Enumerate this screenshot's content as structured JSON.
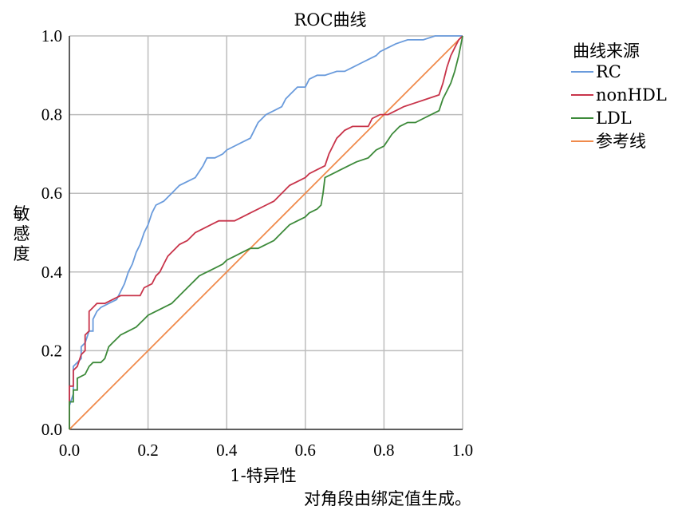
{
  "chart_data": {
    "type": "line",
    "title": "ROC曲线",
    "xlabel": "1-特异性",
    "ylabel": "敏感度",
    "xlim": [
      0,
      1
    ],
    "ylim": [
      0,
      1
    ],
    "xticks": [
      "0.0",
      "0.2",
      "0.4",
      "0.6",
      "0.8",
      "1.0"
    ],
    "yticks": [
      "0.0",
      "0.2",
      "0.4",
      "0.6",
      "0.8",
      "1.0"
    ],
    "grid": true,
    "legend_title": "曲线来源",
    "legend_position": "right",
    "footnote": "对角段由绑定值生成。",
    "series": [
      {
        "name": "RC",
        "color": "#6a9bdc",
        "points": [
          [
            0,
            0
          ],
          [
            0,
            0.06
          ],
          [
            0.01,
            0.09
          ],
          [
            0.01,
            0.16
          ],
          [
            0.02,
            0.17
          ],
          [
            0.03,
            0.18
          ],
          [
            0.03,
            0.21
          ],
          [
            0.04,
            0.22
          ],
          [
            0.05,
            0.25
          ],
          [
            0.06,
            0.25
          ],
          [
            0.06,
            0.28
          ],
          [
            0.07,
            0.3
          ],
          [
            0.08,
            0.31
          ],
          [
            0.1,
            0.32
          ],
          [
            0.12,
            0.33
          ],
          [
            0.13,
            0.35
          ],
          [
            0.14,
            0.37
          ],
          [
            0.15,
            0.4
          ],
          [
            0.16,
            0.42
          ],
          [
            0.17,
            0.45
          ],
          [
            0.18,
            0.47
          ],
          [
            0.19,
            0.5
          ],
          [
            0.2,
            0.52
          ],
          [
            0.21,
            0.55
          ],
          [
            0.22,
            0.57
          ],
          [
            0.24,
            0.58
          ],
          [
            0.25,
            0.59
          ],
          [
            0.26,
            0.6
          ],
          [
            0.27,
            0.61
          ],
          [
            0.28,
            0.62
          ],
          [
            0.3,
            0.63
          ],
          [
            0.32,
            0.64
          ],
          [
            0.34,
            0.67
          ],
          [
            0.35,
            0.69
          ],
          [
            0.37,
            0.69
          ],
          [
            0.39,
            0.7
          ],
          [
            0.4,
            0.71
          ],
          [
            0.42,
            0.72
          ],
          [
            0.44,
            0.73
          ],
          [
            0.46,
            0.74
          ],
          [
            0.47,
            0.76
          ],
          [
            0.48,
            0.78
          ],
          [
            0.49,
            0.79
          ],
          [
            0.5,
            0.8
          ],
          [
            0.52,
            0.81
          ],
          [
            0.54,
            0.82
          ],
          [
            0.55,
            0.84
          ],
          [
            0.56,
            0.85
          ],
          [
            0.57,
            0.86
          ],
          [
            0.58,
            0.87
          ],
          [
            0.6,
            0.87
          ],
          [
            0.61,
            0.89
          ],
          [
            0.63,
            0.9
          ],
          [
            0.65,
            0.9
          ],
          [
            0.68,
            0.91
          ],
          [
            0.7,
            0.91
          ],
          [
            0.72,
            0.92
          ],
          [
            0.74,
            0.93
          ],
          [
            0.76,
            0.94
          ],
          [
            0.78,
            0.95
          ],
          [
            0.79,
            0.96
          ],
          [
            0.81,
            0.97
          ],
          [
            0.83,
            0.98
          ],
          [
            0.86,
            0.99
          ],
          [
            0.9,
            0.99
          ],
          [
            0.93,
            1.0
          ],
          [
            1.0,
            1.0
          ]
        ]
      },
      {
        "name": "nonHDL",
        "color": "#c8344a",
        "points": [
          [
            0,
            0
          ],
          [
            0,
            0.11
          ],
          [
            0.01,
            0.11
          ],
          [
            0.01,
            0.15
          ],
          [
            0.02,
            0.16
          ],
          [
            0.03,
            0.19
          ],
          [
            0.04,
            0.2
          ],
          [
            0.04,
            0.24
          ],
          [
            0.05,
            0.25
          ],
          [
            0.05,
            0.3
          ],
          [
            0.06,
            0.31
          ],
          [
            0.07,
            0.32
          ],
          [
            0.09,
            0.32
          ],
          [
            0.11,
            0.33
          ],
          [
            0.13,
            0.34
          ],
          [
            0.15,
            0.34
          ],
          [
            0.18,
            0.34
          ],
          [
            0.19,
            0.36
          ],
          [
            0.21,
            0.37
          ],
          [
            0.22,
            0.39
          ],
          [
            0.23,
            0.4
          ],
          [
            0.24,
            0.42
          ],
          [
            0.25,
            0.44
          ],
          [
            0.26,
            0.45
          ],
          [
            0.27,
            0.46
          ],
          [
            0.28,
            0.47
          ],
          [
            0.3,
            0.48
          ],
          [
            0.32,
            0.5
          ],
          [
            0.34,
            0.51
          ],
          [
            0.36,
            0.52
          ],
          [
            0.38,
            0.53
          ],
          [
            0.4,
            0.53
          ],
          [
            0.42,
            0.53
          ],
          [
            0.44,
            0.54
          ],
          [
            0.46,
            0.55
          ],
          [
            0.48,
            0.56
          ],
          [
            0.5,
            0.57
          ],
          [
            0.52,
            0.58
          ],
          [
            0.54,
            0.6
          ],
          [
            0.56,
            0.62
          ],
          [
            0.58,
            0.63
          ],
          [
            0.6,
            0.64
          ],
          [
            0.61,
            0.65
          ],
          [
            0.63,
            0.66
          ],
          [
            0.65,
            0.67
          ],
          [
            0.66,
            0.7
          ],
          [
            0.67,
            0.72
          ],
          [
            0.68,
            0.74
          ],
          [
            0.69,
            0.75
          ],
          [
            0.7,
            0.76
          ],
          [
            0.72,
            0.77
          ],
          [
            0.74,
            0.77
          ],
          [
            0.76,
            0.77
          ],
          [
            0.77,
            0.79
          ],
          [
            0.79,
            0.8
          ],
          [
            0.81,
            0.8
          ],
          [
            0.83,
            0.81
          ],
          [
            0.85,
            0.82
          ],
          [
            0.88,
            0.83
          ],
          [
            0.91,
            0.84
          ],
          [
            0.94,
            0.85
          ],
          [
            0.95,
            0.88
          ],
          [
            0.96,
            0.92
          ],
          [
            0.97,
            0.95
          ],
          [
            0.98,
            0.97
          ],
          [
            0.99,
            0.99
          ],
          [
            1.0,
            1.0
          ]
        ]
      },
      {
        "name": "LDL",
        "color": "#3d8a3a",
        "points": [
          [
            0,
            0
          ],
          [
            0,
            0.07
          ],
          [
            0.01,
            0.07
          ],
          [
            0.01,
            0.1
          ],
          [
            0.02,
            0.1
          ],
          [
            0.02,
            0.13
          ],
          [
            0.04,
            0.14
          ],
          [
            0.05,
            0.16
          ],
          [
            0.06,
            0.17
          ],
          [
            0.08,
            0.17
          ],
          [
            0.09,
            0.18
          ],
          [
            0.1,
            0.21
          ],
          [
            0.11,
            0.22
          ],
          [
            0.12,
            0.23
          ],
          [
            0.13,
            0.24
          ],
          [
            0.15,
            0.25
          ],
          [
            0.17,
            0.26
          ],
          [
            0.18,
            0.27
          ],
          [
            0.19,
            0.28
          ],
          [
            0.2,
            0.29
          ],
          [
            0.22,
            0.3
          ],
          [
            0.24,
            0.31
          ],
          [
            0.26,
            0.32
          ],
          [
            0.28,
            0.34
          ],
          [
            0.3,
            0.36
          ],
          [
            0.31,
            0.37
          ],
          [
            0.32,
            0.38
          ],
          [
            0.33,
            0.39
          ],
          [
            0.35,
            0.4
          ],
          [
            0.37,
            0.41
          ],
          [
            0.39,
            0.42
          ],
          [
            0.4,
            0.43
          ],
          [
            0.42,
            0.44
          ],
          [
            0.44,
            0.45
          ],
          [
            0.46,
            0.46
          ],
          [
            0.48,
            0.46
          ],
          [
            0.5,
            0.47
          ],
          [
            0.52,
            0.48
          ],
          [
            0.54,
            0.5
          ],
          [
            0.56,
            0.52
          ],
          [
            0.58,
            0.53
          ],
          [
            0.6,
            0.54
          ],
          [
            0.61,
            0.55
          ],
          [
            0.63,
            0.56
          ],
          [
            0.64,
            0.57
          ],
          [
            0.645,
            0.6
          ],
          [
            0.65,
            0.64
          ],
          [
            0.67,
            0.65
          ],
          [
            0.69,
            0.66
          ],
          [
            0.71,
            0.67
          ],
          [
            0.73,
            0.68
          ],
          [
            0.76,
            0.69
          ],
          [
            0.78,
            0.71
          ],
          [
            0.8,
            0.72
          ],
          [
            0.82,
            0.75
          ],
          [
            0.84,
            0.77
          ],
          [
            0.86,
            0.78
          ],
          [
            0.88,
            0.78
          ],
          [
            0.9,
            0.79
          ],
          [
            0.92,
            0.8
          ],
          [
            0.94,
            0.81
          ],
          [
            0.95,
            0.84
          ],
          [
            0.96,
            0.86
          ],
          [
            0.97,
            0.88
          ],
          [
            0.98,
            0.91
          ],
          [
            0.99,
            0.95
          ],
          [
            1.0,
            1.0
          ]
        ]
      },
      {
        "name": "参考线",
        "color": "#f08a4b",
        "points": [
          [
            0,
            0
          ],
          [
            1,
            1
          ]
        ]
      }
    ]
  }
}
